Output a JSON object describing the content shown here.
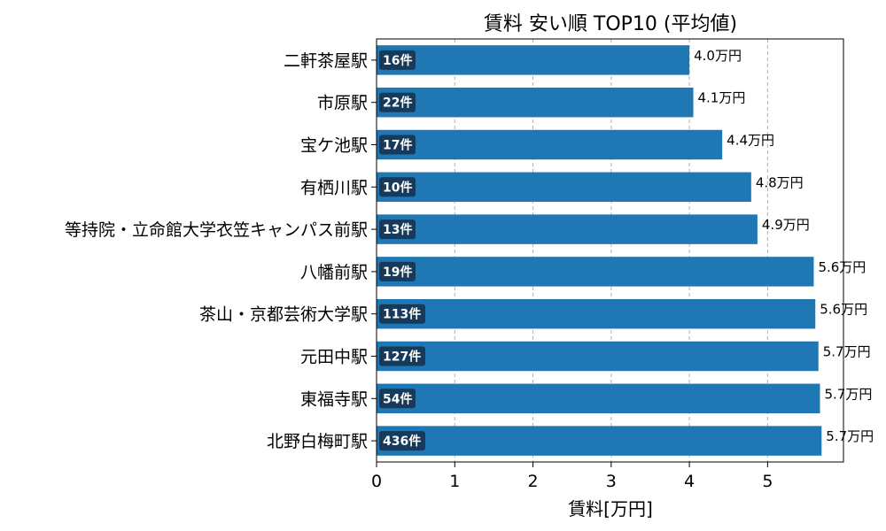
{
  "chart_data": {
    "type": "bar",
    "orientation": "horizontal",
    "title": "賃料 安い順 TOP10 (平均値)",
    "xlabel": "賃料[万円]",
    "ylabel": "",
    "xlim": [
      0,
      5.97
    ],
    "xticks": [
      0,
      1,
      2,
      3,
      4,
      5
    ],
    "grid": "x-dashed",
    "bar_color": "#1f77b4",
    "badge_color": "#153a5b",
    "value_suffix": "万円",
    "categories": [
      "二軒茶屋駅",
      "市原駅",
      "宝ケ池駅",
      "有栖川駅",
      "等持院・立命館大学衣笠キャンパス前駅",
      "八幡前駅",
      "茶山・京都芸術大学駅",
      "元田中駅",
      "東福寺駅",
      "北野白梅町駅"
    ],
    "values": [
      4.0,
      4.05,
      4.42,
      4.79,
      4.87,
      5.59,
      5.61,
      5.65,
      5.67,
      5.69
    ],
    "value_labels": [
      "4.0万円",
      "4.1万円",
      "4.4万円",
      "4.8万円",
      "4.9万円",
      "5.6万円",
      "5.6万円",
      "5.7万円",
      "5.7万円",
      "5.7万円"
    ],
    "count_labels": [
      "16件",
      "22件",
      "17件",
      "10件",
      "13件",
      "19件",
      "113件",
      "127件",
      "54件",
      "436件"
    ]
  }
}
